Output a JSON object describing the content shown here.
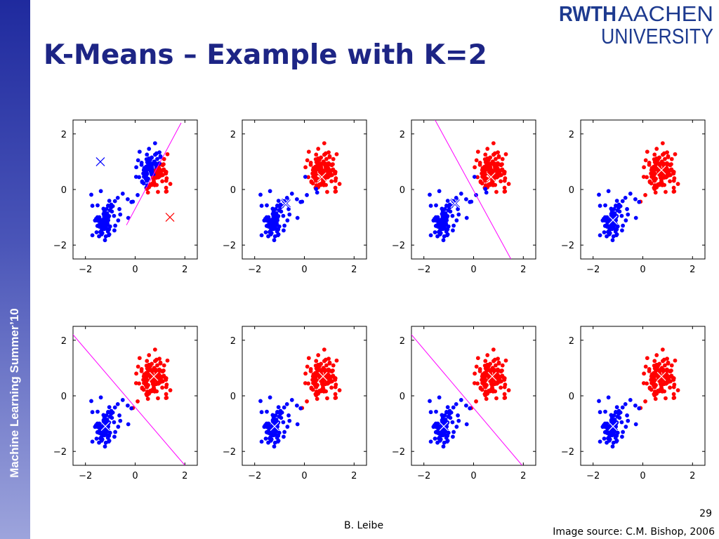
{
  "sidebar": {
    "label": "Machine Learning Summer’10"
  },
  "logo": {
    "rwth": "RWTH",
    "aachen": "AACHEN",
    "university": "UNIVERSITY"
  },
  "slide": {
    "title": "K-Means – Example with K=2"
  },
  "footer": {
    "author": "B. Leibe",
    "page": "29",
    "source": "Image source: C.M. Bishop, 2006"
  },
  "colors": {
    "cluster_blue": "#0000ff",
    "cluster_red": "#ff0000",
    "boundary": "#ff00ff",
    "title": "#1d2585",
    "sidebar": "#1f2a9e"
  },
  "chart_data": [
    {
      "type": "scatter",
      "panel": 1,
      "boundary": [
        [
          -0.35,
          -1.28
        ],
        [
          1.85,
          2.4
        ]
      ],
      "centroids": [
        [
          -1.4,
          1.0
        ],
        [
          1.4,
          -1.0
        ]
      ],
      "split": "initial",
      "xlim": [
        -2.5,
        2.5
      ],
      "ylim": [
        -2.5,
        2.5
      ],
      "xticks": [
        "−2",
        "0",
        "2"
      ],
      "yticks": [
        "2",
        "0",
        "−2"
      ]
    },
    {
      "type": "scatter",
      "panel": 2,
      "boundary": [],
      "centroids": [
        [
          -0.75,
          -0.5
        ],
        [
          0.7,
          0.45
        ]
      ],
      "split": "intermediate",
      "xlim": [
        -2.5,
        2.5
      ],
      "ylim": [
        -2.5,
        2.5
      ],
      "xticks": [
        "−2",
        "0",
        "2"
      ],
      "yticks": [
        "2",
        "0",
        "−2"
      ]
    },
    {
      "type": "scatter",
      "panel": 3,
      "boundary": [
        [
          -1.55,
          2.5
        ],
        [
          1.5,
          -2.5
        ]
      ],
      "centroids": [
        [
          -0.75,
          -0.5
        ],
        [
          0.7,
          0.45
        ]
      ],
      "split": "intermediate",
      "xlim": [
        -2.5,
        2.5
      ],
      "ylim": [
        -2.5,
        2.5
      ],
      "xticks": [
        "−2",
        "0",
        "2"
      ],
      "yticks": [
        "2",
        "0",
        "−2"
      ]
    },
    {
      "type": "scatter",
      "panel": 4,
      "boundary": [],
      "centroids": [
        [
          -1.2,
          -1.1
        ],
        [
          0.75,
          0.7
        ]
      ],
      "split": "final",
      "xlim": [
        -2.5,
        2.5
      ],
      "ylim": [
        -2.5,
        2.5
      ],
      "xticks": [
        "−2",
        "0",
        "2"
      ],
      "yticks": [
        "2",
        "0",
        "−2"
      ]
    },
    {
      "type": "scatter",
      "panel": 5,
      "boundary": [
        [
          -2.5,
          2.2
        ],
        [
          2.0,
          -2.5
        ]
      ],
      "centroids": [
        [
          -1.2,
          -1.1
        ],
        [
          0.75,
          0.7
        ]
      ],
      "split": "final",
      "xlim": [
        -2.5,
        2.5
      ],
      "ylim": [
        -2.5,
        2.5
      ],
      "xticks": [
        "−2",
        "0",
        "2"
      ],
      "yticks": [
        "2",
        "0",
        "−2"
      ]
    },
    {
      "type": "scatter",
      "panel": 6,
      "boundary": [],
      "centroids": [
        [
          -1.2,
          -1.1
        ],
        [
          0.75,
          0.7
        ]
      ],
      "split": "final",
      "xlim": [
        -2.5,
        2.5
      ],
      "ylim": [
        -2.5,
        2.5
      ],
      "xticks": [
        "−2",
        "0",
        "2"
      ],
      "yticks": [
        "2",
        "0",
        "−2"
      ]
    },
    {
      "type": "scatter",
      "panel": 7,
      "boundary": [
        [
          -2.5,
          2.2
        ],
        [
          1.95,
          -2.5
        ]
      ],
      "centroids": [
        [
          -1.2,
          -1.1
        ],
        [
          0.75,
          0.7
        ]
      ],
      "split": "final",
      "xlim": [
        -2.5,
        2.5
      ],
      "ylim": [
        -2.5,
        2.5
      ],
      "xticks": [
        "−2",
        "0",
        "2"
      ],
      "yticks": [
        "2",
        "0",
        "−2"
      ]
    },
    {
      "type": "scatter",
      "panel": 8,
      "boundary": [],
      "centroids": [
        [
          -1.2,
          -1.1
        ],
        [
          0.75,
          0.7
        ]
      ],
      "split": "final",
      "xlim": [
        -2.5,
        2.5
      ],
      "ylim": [
        -2.5,
        2.5
      ],
      "xticks": [
        "−2",
        "0",
        "2"
      ],
      "yticks": [
        "2",
        "0",
        "−2"
      ]
    }
  ]
}
